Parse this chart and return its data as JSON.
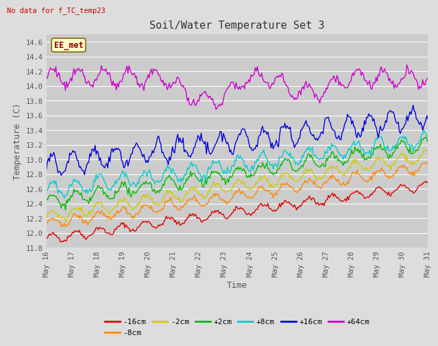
{
  "title": "Soil/Water Temperature Set 3",
  "xlabel": "Time",
  "ylabel": "Temperature (C)",
  "top_left_text": "No data for f_TC_temp23",
  "annotation_label": "EE_met",
  "ylim": [
    11.8,
    14.7
  ],
  "xlim": [
    0,
    360
  ],
  "xtick_labels": [
    "May 16",
    "May 17",
    "May 18",
    "May 19",
    "May 20",
    "May 21",
    "May 22",
    "May 23",
    "May 24",
    "May 25",
    "May 26",
    "May 27",
    "May 28",
    "May 29",
    "May 30",
    "May 31"
  ],
  "series": [
    {
      "label": "-16cm",
      "color": "#dd0000",
      "start": 11.92,
      "end": 12.65,
      "amplitude": 0.055,
      "period": 22
    },
    {
      "label": "-8cm",
      "color": "#ff8800",
      "start": 12.12,
      "end": 12.9,
      "amplitude": 0.065,
      "period": 22
    },
    {
      "label": "-2cm",
      "color": "#cccc00",
      "start": 12.22,
      "end": 13.05,
      "amplitude": 0.075,
      "period": 22
    },
    {
      "label": "+2cm",
      "color": "#00bb00",
      "start": 12.42,
      "end": 13.2,
      "amplitude": 0.085,
      "period": 22
    },
    {
      "label": "+8cm",
      "color": "#00cccc",
      "start": 12.57,
      "end": 13.28,
      "amplitude": 0.095,
      "period": 22
    },
    {
      "label": "+16cm",
      "color": "#0000dd",
      "start": 12.92,
      "end": 13.58,
      "amplitude": 0.13,
      "period": 20
    },
    {
      "label": "+64cm",
      "color": "#cc00cc",
      "start": 14.12,
      "end": 14.1,
      "amplitude": 0.11,
      "period": 24
    }
  ],
  "background_color": "#dddddd",
  "plot_bg_color": "#cccccc",
  "grid_color": "#ffffff",
  "title_fontsize": 11,
  "axis_label_fontsize": 9,
  "tick_fontsize": 7.5,
  "legend_fontsize": 8
}
